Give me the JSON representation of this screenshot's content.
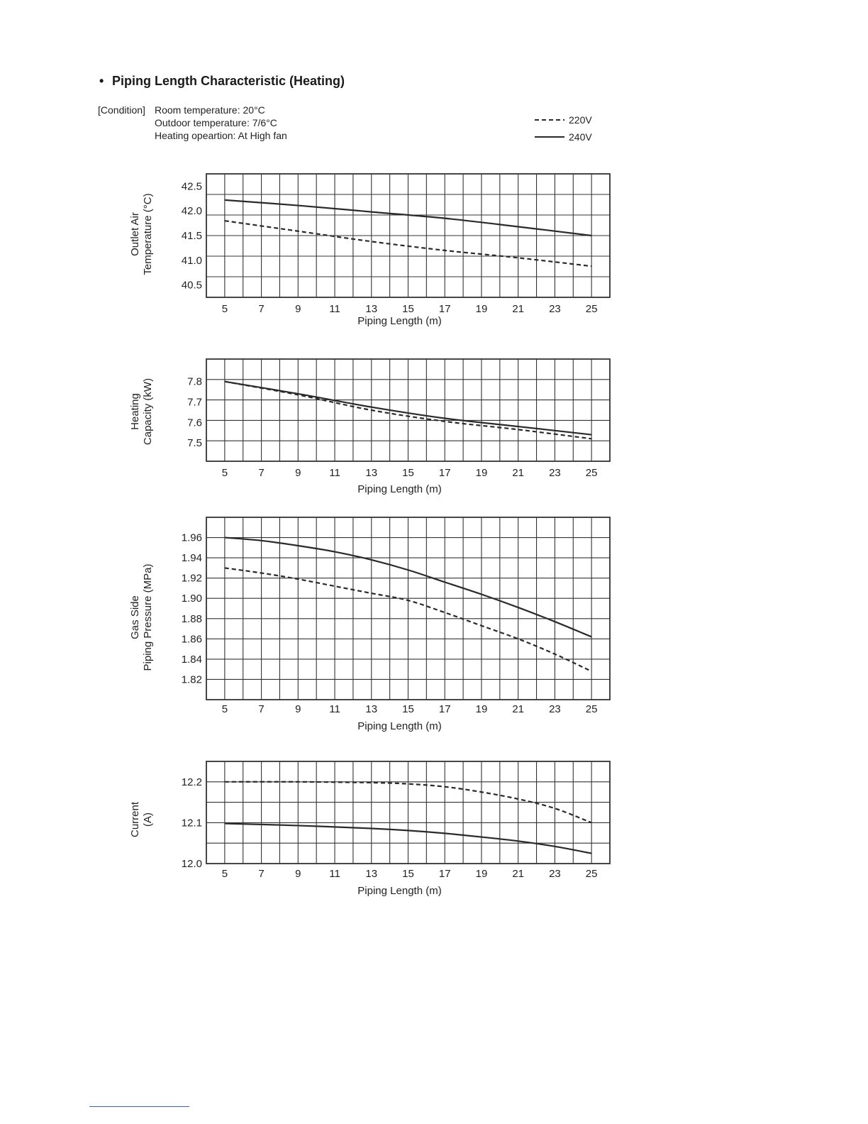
{
  "page": {
    "bullet": "•",
    "title": "Piping Length Characteristic (Heating)",
    "condition_label": "[Condition]",
    "conditions": [
      "Room temperature: 20°C",
      "Outdoor temperature: 7/6°C",
      "Heating opeartion: At High fan"
    ]
  },
  "legend": [
    {
      "label": "220V",
      "style": "dashed"
    },
    {
      "label": "240V",
      "style": "solid"
    }
  ],
  "colors": {
    "line": "#2a2a2a",
    "grid": "#333333",
    "text": "#222222",
    "footer_rule": "#3a5fcd"
  },
  "chart_data": [
    {
      "type": "line",
      "title": "",
      "ylabel": [
        "Outlet Air",
        "Temperature (°C)"
      ],
      "xlabel": "Piping Length (m)",
      "xlim": [
        4,
        26
      ],
      "ylim": [
        40.25,
        42.75
      ],
      "xticks": [
        "5",
        "7",
        "9",
        "11",
        "13",
        "15",
        "17",
        "19",
        "21",
        "23",
        "25"
      ],
      "yticks": [
        "42.5",
        "42.0",
        "41.5",
        "41.0",
        "40.5"
      ],
      "grid": true,
      "legend_position": "top-right",
      "series": [
        {
          "name": "220V",
          "style": "dashed",
          "x": [
            5,
            9,
            13,
            17,
            21,
            25
          ],
          "y": [
            41.8,
            41.59,
            41.38,
            41.2,
            41.05,
            40.88
          ]
        },
        {
          "name": "240V",
          "style": "solid",
          "x": [
            5,
            9,
            13,
            17,
            21,
            25
          ],
          "y": [
            42.22,
            42.11,
            41.98,
            41.85,
            41.68,
            41.5
          ]
        }
      ]
    },
    {
      "type": "line",
      "title": "",
      "ylabel": [
        "Heating",
        "Capacity (kW)"
      ],
      "xlabel": "Piping Length (m)",
      "xlim": [
        4,
        26
      ],
      "ylim": [
        7.41,
        7.91
      ],
      "xticks": [
        "5",
        "7",
        "9",
        "11",
        "13",
        "15",
        "17",
        "19",
        "21",
        "23",
        "25"
      ],
      "yticks": [
        "7.8",
        "7.7",
        "7.6",
        "7.5"
      ],
      "grid": true,
      "legend_position": "top-right",
      "series": [
        {
          "name": "220V",
          "style": "dashed",
          "x": [
            5,
            9,
            13,
            17,
            21,
            25
          ],
          "y": [
            7.8,
            7.735,
            7.66,
            7.605,
            7.565,
            7.52
          ]
        },
        {
          "name": "240V",
          "style": "solid",
          "x": [
            5,
            9,
            13,
            17,
            21,
            25
          ],
          "y": [
            7.8,
            7.74,
            7.675,
            7.62,
            7.58,
            7.54
          ]
        }
      ]
    },
    {
      "type": "line",
      "title": "",
      "ylabel": [
        "Gas Side",
        "Piping Pressure (MPa)"
      ],
      "xlabel": "Piping Length (m)",
      "xlim": [
        4,
        26
      ],
      "ylim": [
        1.8,
        1.98
      ],
      "xticks": [
        "5",
        "7",
        "9",
        "11",
        "13",
        "15",
        "17",
        "19",
        "21",
        "23",
        "25"
      ],
      "yticks": [
        "1.96",
        "1.94",
        "1.92",
        "1.90",
        "1.88",
        "1.86",
        "1.84",
        "1.82"
      ],
      "grid": true,
      "legend_position": "top-right",
      "series": [
        {
          "name": "220V",
          "style": "dashed",
          "x": [
            5,
            7,
            9,
            11,
            13,
            15,
            17,
            19,
            21,
            23,
            25
          ],
          "y": [
            1.93,
            1.925,
            1.919,
            1.912,
            1.905,
            1.898,
            1.886,
            1.873,
            1.86,
            1.845,
            1.828
          ]
        },
        {
          "name": "240V",
          "style": "solid",
          "x": [
            5,
            7,
            9,
            11,
            13,
            15,
            17,
            19,
            21,
            23,
            25
          ],
          "y": [
            1.96,
            1.957,
            1.952,
            1.946,
            1.938,
            1.928,
            1.916,
            1.904,
            1.891,
            1.877,
            1.862
          ]
        }
      ]
    },
    {
      "type": "line",
      "title": "",
      "ylabel": [
        "Current",
        "(A)"
      ],
      "xlabel": "Piping Length (m)",
      "xlim": [
        4,
        26
      ],
      "ylim": [
        12.0,
        12.25
      ],
      "xticks": [
        "5",
        "7",
        "9",
        "11",
        "13",
        "15",
        "17",
        "19",
        "21",
        "23",
        "25"
      ],
      "yticks": [
        "12.2",
        "12.1",
        "12.0"
      ],
      "grid": true,
      "legend_position": "top-right",
      "series": [
        {
          "name": "220V",
          "style": "dashed",
          "x": [
            5,
            9,
            13,
            15,
            17,
            19,
            21,
            23,
            25
          ],
          "y": [
            12.2,
            12.2,
            12.198,
            12.195,
            12.188,
            12.175,
            12.158,
            12.135,
            12.1
          ]
        },
        {
          "name": "240V",
          "style": "solid",
          "x": [
            5,
            9,
            13,
            15,
            17,
            19,
            21,
            23,
            25
          ],
          "y": [
            12.098,
            12.093,
            12.086,
            12.081,
            12.074,
            12.065,
            12.055,
            12.042,
            12.025
          ]
        }
      ]
    }
  ]
}
